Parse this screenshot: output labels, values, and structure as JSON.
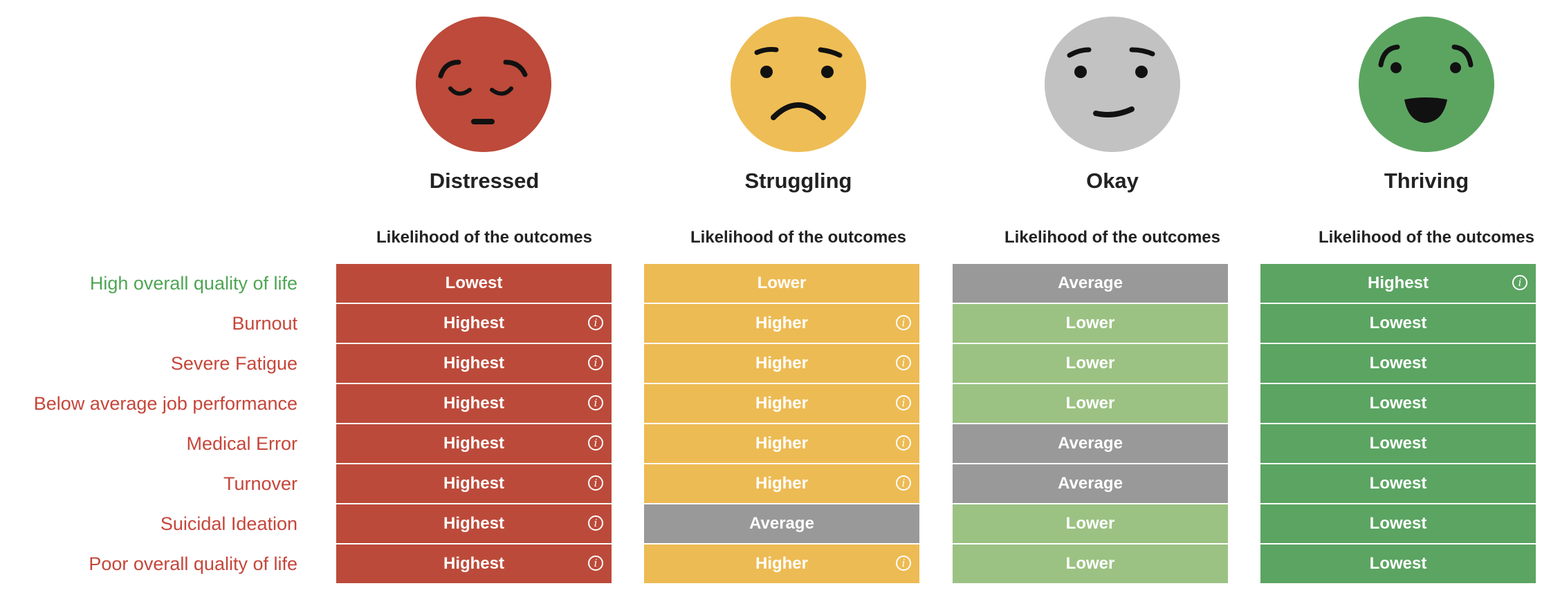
{
  "colors": {
    "red": "#BC4A3A",
    "yellow": "#EDBB54",
    "gray": "#999999",
    "light_green": "#9BC283",
    "green": "#5BA462",
    "label_green": "#4FA554",
    "label_red": "#C5463A",
    "face_red": "#BD4A3A",
    "face_yellow": "#EEBD55",
    "face_gray": "#C2C2C2",
    "face_green": "#5CA561"
  },
  "header": {
    "column_subtitle": "Likelihood of the outcomes"
  },
  "categories": [
    {
      "name": "Distressed",
      "face": "sad-face-icon"
    },
    {
      "name": "Struggling",
      "face": "frown-face-icon"
    },
    {
      "name": "Okay",
      "face": "neutral-face-icon"
    },
    {
      "name": "Thriving",
      "face": "happy-face-icon"
    }
  ],
  "rows": [
    {
      "label": "High overall quality of life",
      "label_color": "green"
    },
    {
      "label": "Burnout",
      "label_color": "red"
    },
    {
      "label": "Severe Fatigue",
      "label_color": "red"
    },
    {
      "label": "Below average job performance",
      "label_color": "red"
    },
    {
      "label": "Medical Error",
      "label_color": "red"
    },
    {
      "label": "Turnover",
      "label_color": "red"
    },
    {
      "label": "Suicidal Ideation",
      "label_color": "red"
    },
    {
      "label": "Poor overall quality of life",
      "label_color": "red"
    }
  ],
  "table": [
    [
      {
        "text": "Lowest",
        "color": "red",
        "info": false
      },
      {
        "text": "Highest",
        "color": "red",
        "info": true
      },
      {
        "text": "Highest",
        "color": "red",
        "info": true
      },
      {
        "text": "Highest",
        "color": "red",
        "info": true
      },
      {
        "text": "Highest",
        "color": "red",
        "info": true
      },
      {
        "text": "Highest",
        "color": "red",
        "info": true
      },
      {
        "text": "Highest",
        "color": "red",
        "info": true
      },
      {
        "text": "Highest",
        "color": "red",
        "info": true
      }
    ],
    [
      {
        "text": "Lower",
        "color": "yellow",
        "info": false
      },
      {
        "text": "Higher",
        "color": "yellow",
        "info": true
      },
      {
        "text": "Higher",
        "color": "yellow",
        "info": true
      },
      {
        "text": "Higher",
        "color": "yellow",
        "info": true
      },
      {
        "text": "Higher",
        "color": "yellow",
        "info": true
      },
      {
        "text": "Higher",
        "color": "yellow",
        "info": true
      },
      {
        "text": "Average",
        "color": "gray",
        "info": false
      },
      {
        "text": "Higher",
        "color": "yellow",
        "info": true
      }
    ],
    [
      {
        "text": "Average",
        "color": "gray",
        "info": false
      },
      {
        "text": "Lower",
        "color": "light_green",
        "info": false
      },
      {
        "text": "Lower",
        "color": "light_green",
        "info": false
      },
      {
        "text": "Lower",
        "color": "light_green",
        "info": false
      },
      {
        "text": "Average",
        "color": "gray",
        "info": false
      },
      {
        "text": "Average",
        "color": "gray",
        "info": false
      },
      {
        "text": "Lower",
        "color": "light_green",
        "info": false
      },
      {
        "text": "Lower",
        "color": "light_green",
        "info": false
      }
    ],
    [
      {
        "text": "Highest",
        "color": "green",
        "info": true
      },
      {
        "text": "Lowest",
        "color": "green",
        "info": false
      },
      {
        "text": "Lowest",
        "color": "green",
        "info": false
      },
      {
        "text": "Lowest",
        "color": "green",
        "info": false
      },
      {
        "text": "Lowest",
        "color": "green",
        "info": false
      },
      {
        "text": "Lowest",
        "color": "green",
        "info": false
      },
      {
        "text": "Lowest",
        "color": "green",
        "info": false
      },
      {
        "text": "Lowest",
        "color": "green",
        "info": false
      }
    ]
  ],
  "info_glyph": "i"
}
